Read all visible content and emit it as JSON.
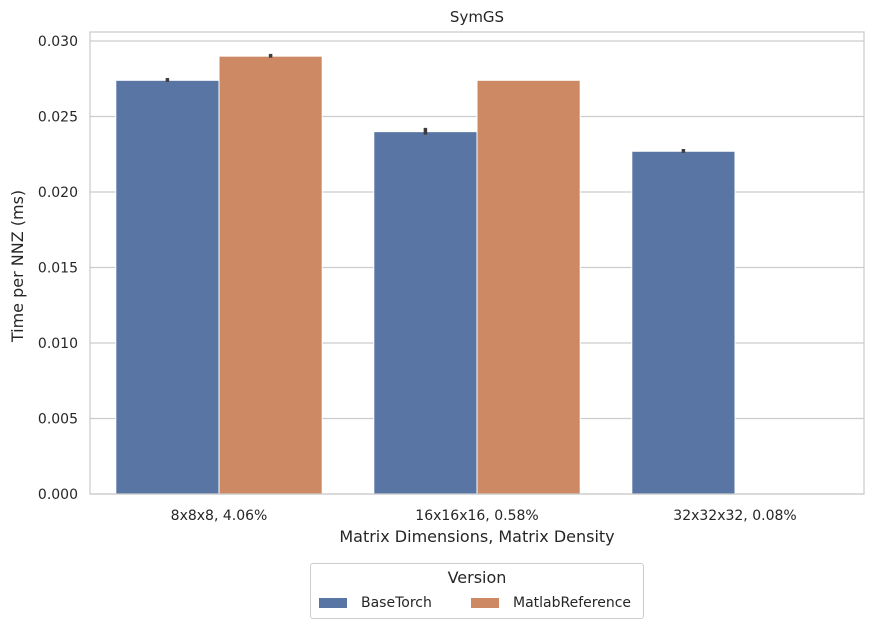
{
  "chart_data": {
    "type": "bar",
    "title": "SymGS",
    "xlabel": "Matrix Dimensions, Matrix Density",
    "ylabel": "Time per NNZ (ms)",
    "categories": [
      "8x8x8, 4.06%",
      "16x16x16, 0.58%",
      "32x32x32, 0.08%"
    ],
    "ylim": [
      0,
      0.0306
    ],
    "yticks": [
      "0.000",
      "0.005",
      "0.010",
      "0.015",
      "0.020",
      "0.025",
      "0.030"
    ],
    "grid": "horizontal",
    "legend_title": "Version",
    "legend_placement": "bottom-center",
    "series": [
      {
        "name": "BaseTorch",
        "color": "#5975a4",
        "values": [
          0.0274,
          0.024,
          0.0227
        ],
        "err_low": [
          0.0273,
          0.0238,
          0.0226
        ],
        "err_high": [
          0.02755,
          0.02425,
          0.02285
        ]
      },
      {
        "name": "MatlabReference",
        "color": "#cc8963",
        "values": [
          0.029,
          0.0274,
          null
        ],
        "err_low": [
          0.0289,
          null,
          null
        ],
        "err_high": [
          0.02915,
          null,
          null
        ]
      }
    ]
  }
}
